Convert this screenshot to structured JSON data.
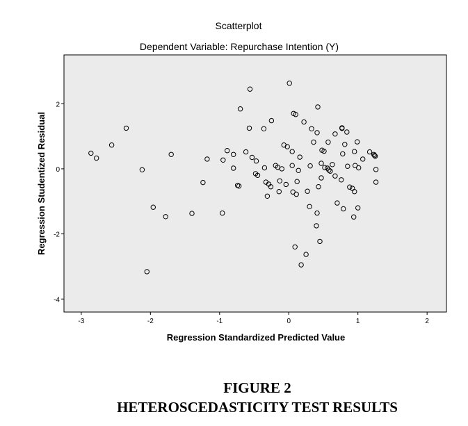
{
  "chart_data": {
    "type": "scatter",
    "title": "Scatterplot",
    "subtitle": "Dependent Variable: Repurchase Intention (Y)",
    "xlabel": "Regression Standardized Predicted Value",
    "ylabel": "Regression Studentized Residual",
    "xlim": [
      -3.25,
      2.28
    ],
    "ylim": [
      -4.4,
      3.5
    ],
    "xticks": [
      -3,
      -2,
      -1,
      0,
      1,
      2
    ],
    "yticks": [
      -4,
      -2,
      0,
      2
    ],
    "xtick_labels": [
      "-3",
      "-2",
      "-1",
      "0",
      "1",
      "2"
    ],
    "ytick_labels": [
      "-4",
      "-2",
      "0",
      "2"
    ],
    "grid": false,
    "plot_background": "#ebebeb",
    "marker_color": "#000000",
    "points": [
      {
        "x": -2.86,
        "y": 0.48
      },
      {
        "x": -2.78,
        "y": 0.33
      },
      {
        "x": -2.56,
        "y": 0.73
      },
      {
        "x": -2.35,
        "y": 1.25
      },
      {
        "x": -2.12,
        "y": -0.03
      },
      {
        "x": -2.05,
        "y": -3.16
      },
      {
        "x": -1.96,
        "y": -1.18
      },
      {
        "x": -1.78,
        "y": -1.47
      },
      {
        "x": -1.7,
        "y": 0.44
      },
      {
        "x": -1.4,
        "y": -1.37
      },
      {
        "x": -1.24,
        "y": -0.42
      },
      {
        "x": -1.18,
        "y": 0.3
      },
      {
        "x": -0.96,
        "y": -1.36
      },
      {
        "x": -0.95,
        "y": 0.27
      },
      {
        "x": -0.89,
        "y": 0.56
      },
      {
        "x": -0.8,
        "y": 0.02
      },
      {
        "x": -0.8,
        "y": 0.44
      },
      {
        "x": -0.74,
        "y": -0.51
      },
      {
        "x": -0.72,
        "y": -0.53
      },
      {
        "x": -0.7,
        "y": 1.84
      },
      {
        "x": -0.62,
        "y": 0.52
      },
      {
        "x": -0.57,
        "y": 1.25
      },
      {
        "x": -0.56,
        "y": 2.45
      },
      {
        "x": -0.53,
        "y": 0.35
      },
      {
        "x": -0.48,
        "y": -0.15
      },
      {
        "x": -0.47,
        "y": 0.24
      },
      {
        "x": -0.45,
        "y": -0.2
      },
      {
        "x": -0.36,
        "y": 1.23
      },
      {
        "x": -0.35,
        "y": 0.03
      },
      {
        "x": -0.33,
        "y": -0.41
      },
      {
        "x": -0.31,
        "y": -0.84
      },
      {
        "x": -0.29,
        "y": -0.47
      },
      {
        "x": -0.26,
        "y": -0.55
      },
      {
        "x": -0.25,
        "y": 1.48
      },
      {
        "x": -0.19,
        "y": 0.1
      },
      {
        "x": -0.16,
        "y": 0.05
      },
      {
        "x": -0.14,
        "y": -0.7
      },
      {
        "x": -0.13,
        "y": -0.37
      },
      {
        "x": -0.1,
        "y": 0.0
      },
      {
        "x": -0.07,
        "y": 0.73
      },
      {
        "x": -0.04,
        "y": -0.48
      },
      {
        "x": -0.02,
        "y": 0.68
      },
      {
        "x": 0.01,
        "y": 2.63
      },
      {
        "x": 0.05,
        "y": 0.53
      },
      {
        "x": 0.05,
        "y": 0.1
      },
      {
        "x": 0.06,
        "y": -0.71
      },
      {
        "x": 0.07,
        "y": 1.7
      },
      {
        "x": 0.09,
        "y": -2.4
      },
      {
        "x": 0.1,
        "y": 1.67
      },
      {
        "x": 0.11,
        "y": -0.78
      },
      {
        "x": 0.12,
        "y": -0.39
      },
      {
        "x": 0.14,
        "y": -0.05
      },
      {
        "x": 0.16,
        "y": 0.36
      },
      {
        "x": 0.18,
        "y": -2.95
      },
      {
        "x": 0.22,
        "y": 1.44
      },
      {
        "x": 0.25,
        "y": -2.63
      },
      {
        "x": 0.27,
        "y": -0.69
      },
      {
        "x": 0.3,
        "y": -1.16
      },
      {
        "x": 0.31,
        "y": 0.09
      },
      {
        "x": 0.33,
        "y": 1.23
      },
      {
        "x": 0.36,
        "y": 0.82
      },
      {
        "x": 0.4,
        "y": -1.75
      },
      {
        "x": 0.41,
        "y": 1.11
      },
      {
        "x": 0.41,
        "y": -1.36
      },
      {
        "x": 0.42,
        "y": 1.9
      },
      {
        "x": 0.43,
        "y": -0.55
      },
      {
        "x": 0.45,
        "y": -2.23
      },
      {
        "x": 0.47,
        "y": 0.17
      },
      {
        "x": 0.47,
        "y": -0.28
      },
      {
        "x": 0.48,
        "y": 0.57
      },
      {
        "x": 0.51,
        "y": 0.54
      },
      {
        "x": 0.52,
        "y": 0.04
      },
      {
        "x": 0.56,
        "y": 0.02
      },
      {
        "x": 0.57,
        "y": 0.82
      },
      {
        "x": 0.58,
        "y": -0.04
      },
      {
        "x": 0.6,
        "y": -0.07
      },
      {
        "x": 0.63,
        "y": 0.13
      },
      {
        "x": 0.67,
        "y": 1.07
      },
      {
        "x": 0.67,
        "y": -0.22
      },
      {
        "x": 0.7,
        "y": -1.05
      },
      {
        "x": 0.76,
        "y": -0.34
      },
      {
        "x": 0.77,
        "y": 1.26
      },
      {
        "x": 0.77,
        "y": 1.24
      },
      {
        "x": 0.78,
        "y": 0.46
      },
      {
        "x": 0.79,
        "y": -1.23
      },
      {
        "x": 0.81,
        "y": 0.75
      },
      {
        "x": 0.84,
        "y": 1.13
      },
      {
        "x": 0.85,
        "y": 0.08
      },
      {
        "x": 0.88,
        "y": -0.56
      },
      {
        "x": 0.92,
        "y": -0.6
      },
      {
        "x": 0.94,
        "y": -1.48
      },
      {
        "x": 0.95,
        "y": 0.53
      },
      {
        "x": 0.95,
        "y": -0.7
      },
      {
        "x": 0.96,
        "y": 0.1
      },
      {
        "x": 0.99,
        "y": 0.83
      },
      {
        "x": 1.0,
        "y": -1.2
      },
      {
        "x": 1.01,
        "y": 0.03
      },
      {
        "x": 1.07,
        "y": 0.3
      },
      {
        "x": 1.17,
        "y": 0.52
      },
      {
        "x": 1.23,
        "y": 0.44
      },
      {
        "x": 1.24,
        "y": 0.41
      },
      {
        "x": 1.25,
        "y": 0.39
      },
      {
        "x": 1.26,
        "y": -0.02
      },
      {
        "x": 1.26,
        "y": -0.41
      }
    ]
  },
  "figure": {
    "caption_line1": "FIGURE 2",
    "caption_line2": "HETEROSCEDASTICITY TEST RESULTS"
  }
}
